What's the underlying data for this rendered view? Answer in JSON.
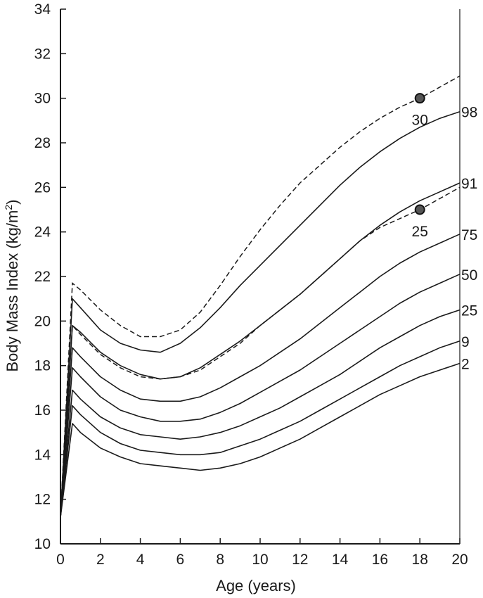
{
  "chart_data": {
    "type": "line",
    "title": "",
    "xlabel": "Age (years)",
    "ylabel_main": "Body Mass Index (kg/m",
    "ylabel_sup": "2",
    "ylabel_tail": ")",
    "xlim": [
      0,
      20
    ],
    "ylim": [
      10,
      34
    ],
    "x_ticks": [
      0,
      2,
      4,
      6,
      8,
      10,
      12,
      14,
      16,
      18,
      20
    ],
    "y_ticks": [
      10,
      12,
      14,
      16,
      18,
      20,
      22,
      24,
      26,
      28,
      30,
      32,
      34
    ],
    "grid": false,
    "x": [
      0,
      0.6,
      1,
      2,
      3,
      4,
      5,
      6,
      7,
      8,
      9,
      10,
      11,
      12,
      13,
      14,
      15,
      16,
      17,
      18,
      19,
      20
    ],
    "series": [
      {
        "name": "98",
        "style": "solid",
        "values": [
          11.2,
          21.0,
          20.6,
          19.6,
          19.0,
          18.7,
          18.6,
          19.0,
          19.7,
          20.6,
          21.6,
          22.5,
          23.4,
          24.3,
          25.2,
          26.1,
          26.9,
          27.6,
          28.2,
          28.7,
          29.1,
          29.4
        ]
      },
      {
        "name": "91",
        "style": "solid",
        "values": [
          11.2,
          19.8,
          19.5,
          18.6,
          18.0,
          17.6,
          17.4,
          17.5,
          17.9,
          18.5,
          19.1,
          19.8,
          20.5,
          21.2,
          22.0,
          22.8,
          23.6,
          24.3,
          24.9,
          25.4,
          25.8,
          26.2
        ]
      },
      {
        "name": "75",
        "style": "solid",
        "values": [
          11.2,
          18.8,
          18.4,
          17.5,
          16.9,
          16.5,
          16.4,
          16.4,
          16.6,
          17.0,
          17.5,
          18.0,
          18.6,
          19.2,
          19.9,
          20.6,
          21.3,
          22.0,
          22.6,
          23.1,
          23.5,
          23.9
        ]
      },
      {
        "name": "50",
        "style": "solid",
        "values": [
          11.2,
          17.9,
          17.5,
          16.6,
          16.0,
          15.7,
          15.5,
          15.5,
          15.6,
          15.9,
          16.3,
          16.8,
          17.3,
          17.8,
          18.4,
          19.0,
          19.6,
          20.2,
          20.8,
          21.3,
          21.7,
          22.1
        ]
      },
      {
        "name": "25",
        "style": "solid",
        "values": [
          11.2,
          16.9,
          16.5,
          15.7,
          15.2,
          14.9,
          14.8,
          14.7,
          14.8,
          15.0,
          15.3,
          15.7,
          16.1,
          16.6,
          17.1,
          17.6,
          18.2,
          18.8,
          19.3,
          19.8,
          20.2,
          20.5
        ]
      },
      {
        "name": "9",
        "style": "solid",
        "values": [
          11.2,
          16.2,
          15.8,
          15.0,
          14.5,
          14.2,
          14.1,
          14.0,
          14.0,
          14.1,
          14.4,
          14.7,
          15.1,
          15.5,
          16.0,
          16.5,
          17.0,
          17.5,
          18.0,
          18.4,
          18.8,
          19.1
        ]
      },
      {
        "name": "2",
        "style": "solid",
        "values": [
          11.2,
          15.4,
          15.0,
          14.3,
          13.9,
          13.6,
          13.5,
          13.4,
          13.3,
          13.4,
          13.6,
          13.9,
          14.3,
          14.7,
          15.2,
          15.7,
          16.2,
          16.7,
          17.1,
          17.5,
          17.8,
          18.1
        ]
      }
    ],
    "cutoff_series": [
      {
        "name": "30",
        "style": "dashed",
        "values": [
          11.2,
          21.7,
          21.4,
          20.5,
          19.8,
          19.3,
          19.3,
          19.6,
          20.4,
          21.6,
          22.9,
          24.1,
          25.2,
          26.2,
          27.0,
          27.8,
          28.5,
          29.1,
          29.6,
          30.0,
          30.5,
          31.0
        ]
      },
      {
        "name": "25",
        "style": "dashed",
        "values": [
          11.2,
          19.8,
          19.4,
          18.5,
          17.9,
          17.5,
          17.4,
          17.5,
          17.8,
          18.4,
          19.0,
          19.8,
          20.5,
          21.2,
          22.0,
          22.8,
          23.6,
          24.2,
          24.6,
          25.0,
          25.5,
          26.0
        ]
      }
    ],
    "markers": [
      {
        "x": 18,
        "y": 30,
        "label": "30"
      },
      {
        "x": 18,
        "y": 25,
        "label": "25"
      }
    ]
  }
}
